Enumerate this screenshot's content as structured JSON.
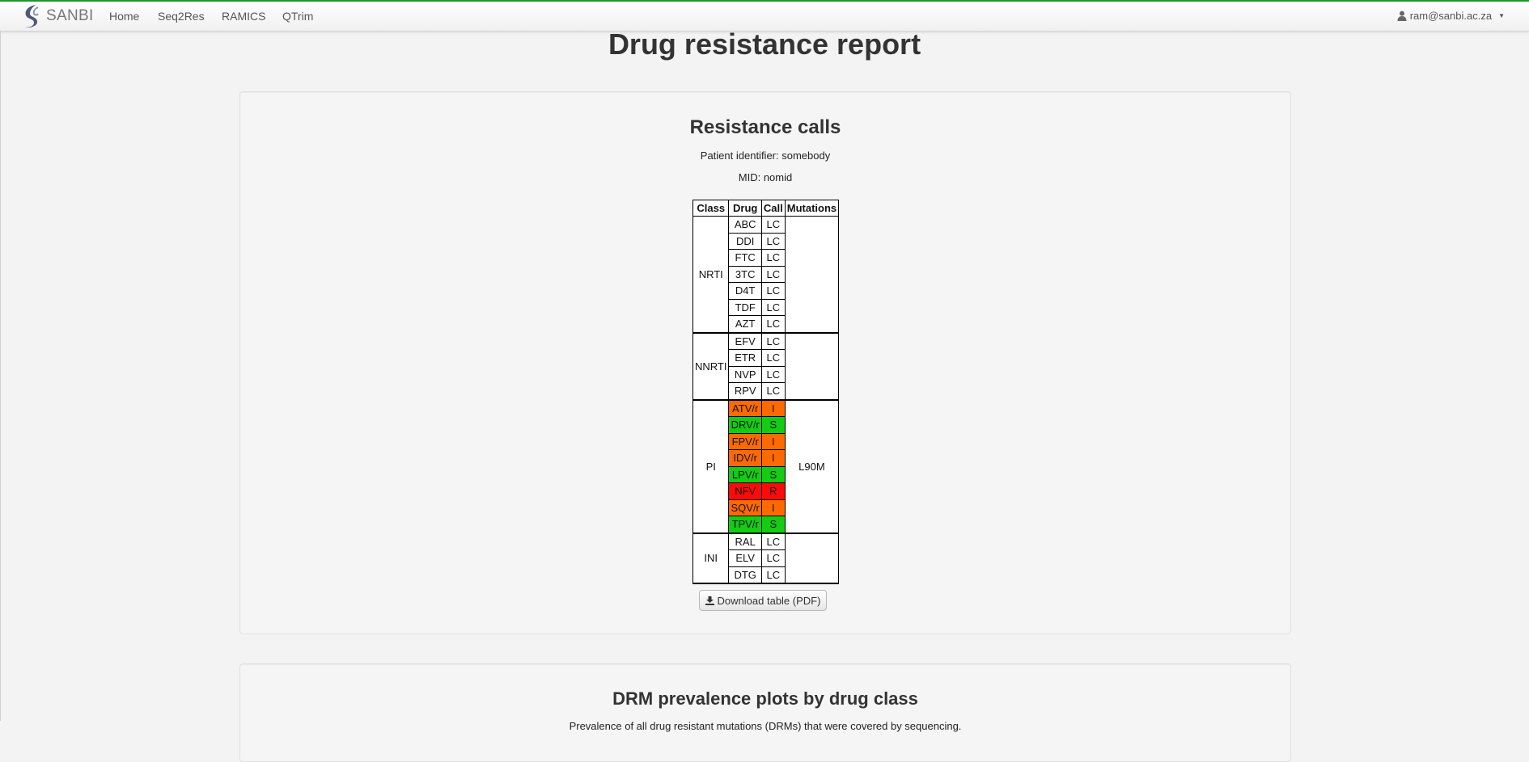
{
  "navbar": {
    "brand": "SANBI",
    "links": [
      "Home",
      "Seq2Res",
      "RAMICS",
      "QTrim"
    ],
    "user": "ram@sanbi.ac.za"
  },
  "page_title": "Drug resistance report",
  "resistance": {
    "title": "Resistance calls",
    "patient_line": "Patient identifier: somebody",
    "mid_line": "MID: nomid",
    "headers": [
      "Class",
      "Drug",
      "Call",
      "Mutations"
    ],
    "groups": [
      {
        "class": "NRTI",
        "mutations": "",
        "rows": [
          {
            "drug": "ABC",
            "call": "LC"
          },
          {
            "drug": "DDI",
            "call": "LC"
          },
          {
            "drug": "FTC",
            "call": "LC"
          },
          {
            "drug": "3TC",
            "call": "LC"
          },
          {
            "drug": "D4T",
            "call": "LC"
          },
          {
            "drug": "TDF",
            "call": "LC"
          },
          {
            "drug": "AZT",
            "call": "LC"
          }
        ]
      },
      {
        "class": "NNRTI",
        "mutations": "",
        "rows": [
          {
            "drug": "EFV",
            "call": "LC"
          },
          {
            "drug": "ETR",
            "call": "LC"
          },
          {
            "drug": "NVP",
            "call": "LC"
          },
          {
            "drug": "RPV",
            "call": "LC"
          }
        ]
      },
      {
        "class": "PI",
        "mutations": "L90M",
        "rows": [
          {
            "drug": "ATV/r",
            "call": "I"
          },
          {
            "drug": "DRV/r",
            "call": "S"
          },
          {
            "drug": "FPV/r",
            "call": "I"
          },
          {
            "drug": "IDV/r",
            "call": "I"
          },
          {
            "drug": "LPV/r",
            "call": "S"
          },
          {
            "drug": "NFV",
            "call": "R"
          },
          {
            "drug": "SQV/r",
            "call": "I"
          },
          {
            "drug": "TPV/r",
            "call": "S"
          }
        ]
      },
      {
        "class": "INI",
        "mutations": "",
        "rows": [
          {
            "drug": "RAL",
            "call": "LC"
          },
          {
            "drug": "ELV",
            "call": "LC"
          },
          {
            "drug": "DTG",
            "call": "LC"
          }
        ]
      }
    ],
    "call_colors": {
      "I": "#ff6a00",
      "S": "#13cc13",
      "R": "#ff0a0a"
    },
    "download_label": "Download table (PDF)"
  },
  "drm": {
    "title": "DRM prevalence plots by drug class",
    "description": "Prevalence of all drug resistant mutations (DRMs) that were covered by sequencing."
  }
}
